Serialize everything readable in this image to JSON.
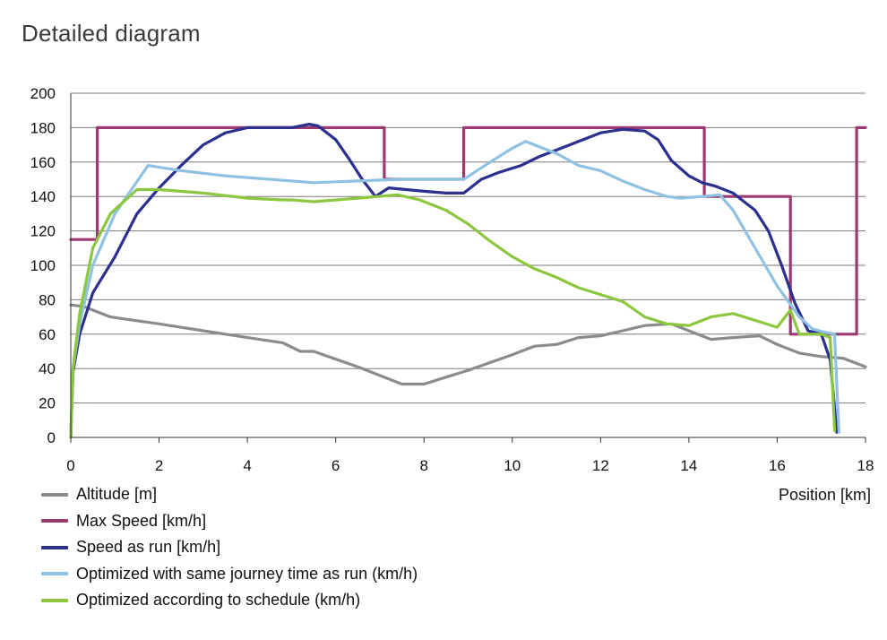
{
  "page_title": "Detailed diagram",
  "chart_data": {
    "type": "line",
    "title": "",
    "xlabel": "Position [km]",
    "ylabel": "",
    "xlim": [
      0,
      18
    ],
    "ylim": [
      0,
      200
    ],
    "xticks": [
      0,
      2,
      4,
      6,
      8,
      10,
      12,
      14,
      16,
      18
    ],
    "yticks": [
      0,
      20,
      40,
      60,
      80,
      100,
      120,
      140,
      160,
      180,
      200
    ],
    "grid": "horizontal",
    "legend_position": "bottom-left",
    "series": [
      {
        "name": "Altitude [m]",
        "color": "#8a8c8b",
        "x": [
          0,
          0.3,
          0.9,
          2,
          3,
          4,
          4.8,
          5.2,
          5.5,
          6.5,
          7.5,
          8,
          9,
          10,
          10.5,
          11,
          11.5,
          12,
          12.5,
          13,
          13.6,
          14,
          14.5,
          15,
          15.6,
          16,
          16.5,
          17,
          17.5,
          18
        ],
        "values": [
          77,
          76,
          70,
          66,
          62,
          58,
          55,
          50,
          50,
          41,
          31,
          31,
          39,
          48,
          53,
          54,
          58,
          59,
          62,
          65,
          66,
          62,
          57,
          58,
          59,
          54,
          49,
          47,
          46,
          41
        ]
      },
      {
        "name": "Max Speed [km/h]",
        "color": "#9a3a71",
        "step": true,
        "x": [
          0,
          0.6,
          0.6,
          7.1,
          7.1,
          8.9,
          8.9,
          14.35,
          14.35,
          16.3,
          16.3,
          17.8,
          17.8,
          18
        ],
        "values": [
          115,
          115,
          180,
          180,
          150,
          150,
          180,
          180,
          140,
          140,
          60,
          60,
          180,
          180
        ]
      },
      {
        "name": "Speed as run [km/h]",
        "color": "#2b2f8e",
        "x": [
          0,
          0.05,
          0.2,
          0.5,
          1,
          1.5,
          2,
          2.5,
          3,
          3.5,
          4,
          4.5,
          5,
          5.4,
          5.6,
          6,
          6.3,
          6.6,
          6.9,
          7.2,
          7.6,
          8,
          8.5,
          8.9,
          9.3,
          9.7,
          10.2,
          10.6,
          11,
          11.5,
          12,
          12.5,
          13,
          13.3,
          13.6,
          14,
          14.3,
          14.6,
          15,
          15.5,
          15.8,
          16.1,
          16.4,
          16.7,
          17.0,
          17.2,
          17.35
        ],
        "values": [
          0,
          38,
          60,
          84,
          105,
          130,
          145,
          158,
          170,
          177,
          180,
          180,
          180,
          182,
          181,
          173,
          162,
          150,
          140,
          145,
          144,
          143,
          142,
          142,
          150,
          154,
          158,
          163,
          167,
          172,
          177,
          179,
          178,
          173,
          161,
          152,
          148,
          146,
          142,
          132,
          120,
          100,
          78,
          62,
          60,
          45,
          3
        ]
      },
      {
        "name": "Optimized with same journey time as run (km/h)",
        "color": "#8fc1e2",
        "x": [
          0,
          0.05,
          0.2,
          0.5,
          1,
          1.75,
          2.5,
          3.5,
          4.5,
          5.5,
          6.5,
          7.5,
          8,
          8.5,
          8.9,
          9.5,
          10,
          10.3,
          10.6,
          11,
          11.5,
          12,
          12.5,
          13,
          13.5,
          13.8,
          14.3,
          14.7,
          15,
          15.5,
          16,
          16.5,
          16.8,
          17.1,
          17.3,
          17.35,
          17.4
        ],
        "values": [
          0,
          40,
          66,
          100,
          130,
          158,
          155,
          152,
          150,
          148,
          149,
          150,
          150,
          150,
          150,
          160,
          168,
          172,
          169,
          165,
          158,
          155,
          149,
          144,
          140,
          139,
          140,
          141,
          132,
          110,
          88,
          70,
          63,
          61,
          60,
          30,
          3
        ]
      },
      {
        "name": "Optimized according to schedule (km/h)",
        "color": "#8dc63f",
        "x": [
          0,
          0.05,
          0.2,
          0.5,
          0.9,
          1.5,
          2,
          3,
          4,
          4.8,
          5,
          5.5,
          6.5,
          7.4,
          7.9,
          8.5,
          9,
          9.5,
          10,
          10.5,
          11,
          11.5,
          12,
          12.5,
          13,
          13.5,
          14,
          14.5,
          15,
          15.5,
          16,
          16.3,
          16.5,
          17.0,
          17.2,
          17.3
        ],
        "values": [
          0,
          40,
          72,
          110,
          130,
          144,
          144,
          142,
          139,
          138,
          138,
          137,
          139,
          141,
          138,
          132,
          124,
          114,
          105,
          98,
          93,
          87,
          83,
          79,
          70,
          66,
          65,
          70,
          72,
          68,
          64,
          74,
          60,
          60,
          58,
          4
        ]
      }
    ]
  }
}
